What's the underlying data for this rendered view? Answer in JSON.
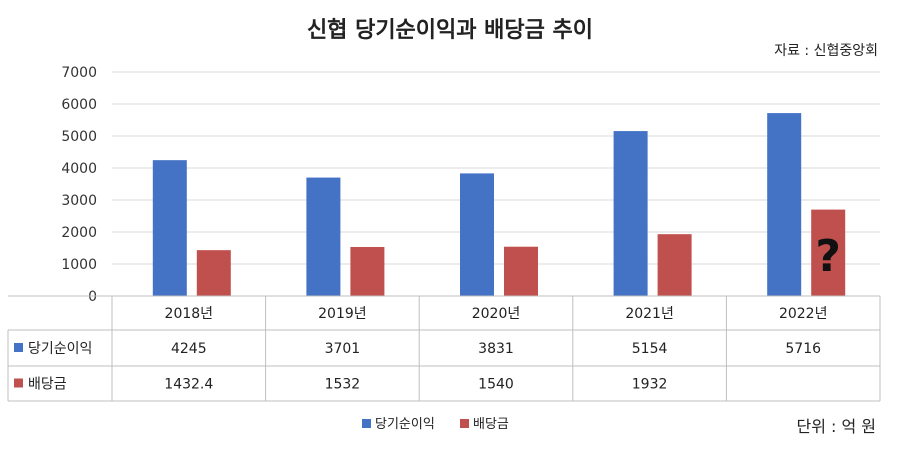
{
  "chart_data": {
    "type": "bar",
    "title": "신협 당기순이익과 배당금 추이",
    "source": "자료 : 신협중앙회",
    "unit": "단위 : 억 원",
    "categories": [
      "2018년",
      "2019년",
      "2020년",
      "2021년",
      "2022년"
    ],
    "ylim": [
      0,
      7000
    ],
    "yticks": [
      0,
      1000,
      2000,
      3000,
      4000,
      5000,
      6000,
      7000
    ],
    "grid": true,
    "legend_position": "bottom",
    "series": [
      {
        "name": "당기순이익",
        "color": "#4472c4",
        "values": [
          4245,
          3701,
          3831,
          5154,
          5716
        ],
        "labels": [
          "4245",
          "3701",
          "3831",
          "5154",
          "5716"
        ]
      },
      {
        "name": "배당금",
        "color": "#c0504d",
        "values": [
          1432.4,
          1532,
          1540,
          1932,
          2700
        ],
        "labels": [
          "1432.4",
          "1532",
          "1540",
          "1932",
          ""
        ]
      }
    ],
    "annotation": {
      "text": "?",
      "category": "2022년",
      "series": "배당금"
    }
  }
}
